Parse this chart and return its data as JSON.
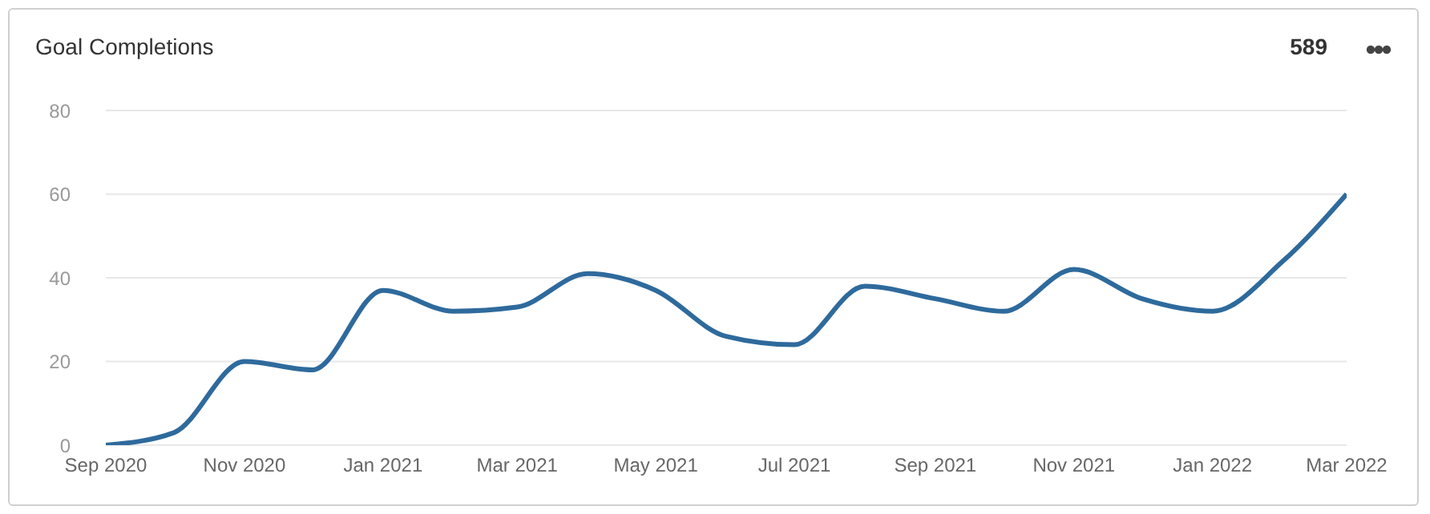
{
  "chart_data": {
    "type": "line",
    "title": "Goal Completions",
    "annotations": [
      "589"
    ],
    "x": [
      "2020-09",
      "2020-10",
      "2020-11",
      "2020-12",
      "2021-01",
      "2021-02",
      "2021-03",
      "2021-04",
      "2021-05",
      "2021-06",
      "2021-07",
      "2021-08",
      "2021-09",
      "2021-10",
      "2021-11",
      "2021-12",
      "2022-01",
      "2022-02",
      "2022-03"
    ],
    "series": [
      {
        "color": "#2e6a9c",
        "values": [
          0,
          3,
          20,
          18,
          37,
          32,
          33,
          41,
          37,
          26,
          24,
          38,
          35,
          32,
          42,
          35,
          32,
          44,
          60
        ]
      }
    ],
    "xlim": [
      "2020-09",
      "2022-03"
    ],
    "xticks": [
      {
        "value": "2020-09",
        "label": "Sep 2020"
      },
      {
        "value": "2020-11",
        "label": "Nov 2020"
      },
      {
        "value": "2021-01",
        "label": "Jan 2021"
      },
      {
        "value": "2021-03",
        "label": "Mar 2021"
      },
      {
        "value": "2021-05",
        "label": "May 2021"
      },
      {
        "value": "2021-07",
        "label": "Jul 2021"
      },
      {
        "value": "2021-09",
        "label": "Sep 2021"
      },
      {
        "value": "2021-11",
        "label": "Nov 2021"
      },
      {
        "value": "2022-01",
        "label": "Jan 2022"
      },
      {
        "value": "2022-03",
        "label": "Mar 2022"
      }
    ],
    "ylim": [
      0,
      80
    ],
    "yticks": [
      0,
      20,
      40,
      60,
      80
    ],
    "grid": "y",
    "legend": false,
    "marker": "none",
    "line_style": "solid"
  }
}
